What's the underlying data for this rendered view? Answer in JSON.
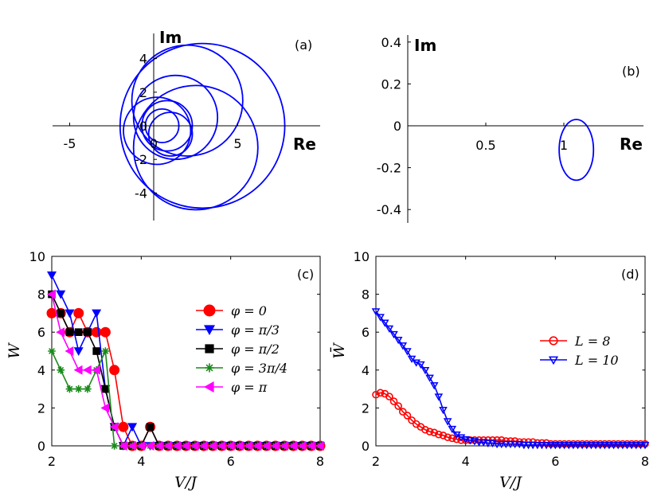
{
  "chart_data": [
    {
      "type": "line",
      "panel_label": "(a)",
      "xlabel": "Re",
      "ylabel": "Im",
      "xlim": [
        -6,
        10
      ],
      "ylim": [
        -6,
        6
      ],
      "xticks": [
        -5,
        0,
        5
      ],
      "yticks": [
        -4,
        -2,
        0,
        2,
        4
      ],
      "xtick_labels": [
        "-5",
        "0",
        "5"
      ],
      "ytick_labels": [
        "-4",
        "-2",
        "0",
        "2",
        "4"
      ],
      "series": [
        {
          "name": "loop1",
          "center": [
            0.5,
            0
          ],
          "radius": 1.0
        },
        {
          "name": "loop2",
          "center": [
            0.8,
            0
          ],
          "radius": 1.5
        },
        {
          "name": "loop3",
          "center": [
            1.0,
            -0.5
          ],
          "radius": 1.3
        },
        {
          "name": "loop4",
          "center": [
            0.2,
            -0.3
          ],
          "radius": 2.0
        },
        {
          "name": "loop5",
          "center": [
            1.3,
            0.5
          ],
          "radius": 2.5
        },
        {
          "name": "loop6",
          "center": [
            2.0,
            1.5
          ],
          "radius": 3.3
        },
        {
          "name": "loop7",
          "center": [
            2.5,
            -1.3
          ],
          "radius": 3.7
        },
        {
          "name": "loop8",
          "center": [
            2.9,
            0
          ],
          "radius": 4.9
        }
      ]
    },
    {
      "type": "line",
      "panel_label": "(b)",
      "xlabel": "Re",
      "ylabel": "Im",
      "xlim": [
        0,
        1.5
      ],
      "ylim": [
        -0.45,
        0.45
      ],
      "xticks": [
        0.5,
        1
      ],
      "yticks": [
        -0.4,
        -0.2,
        0,
        0.2,
        0.4
      ],
      "xtick_labels": [
        "0.5",
        "1"
      ],
      "ytick_labels": [
        "-0.4",
        "-0.2",
        "0",
        "0.2",
        "0.4"
      ],
      "series": [
        {
          "name": "loop",
          "center": [
            1.08,
            -0.115
          ],
          "rx": 0.11,
          "ry": 0.145
        }
      ]
    },
    {
      "type": "line",
      "panel_label": "(c)",
      "xlabel": "V/J",
      "ylabel": "W",
      "xlim": [
        2,
        8
      ],
      "ylim": [
        0,
        10
      ],
      "xticks": [
        2,
        4,
        6,
        8
      ],
      "yticks": [
        0,
        2,
        4,
        6,
        8,
        10
      ],
      "xtick_labels": [
        "2",
        "4",
        "6",
        "8"
      ],
      "ytick_labels": [
        "0",
        "2",
        "4",
        "6",
        "8",
        "10"
      ],
      "legend_position": "right",
      "x": [
        2.0,
        2.2,
        2.4,
        2.6,
        2.8,
        3.0,
        3.2,
        3.4,
        3.6,
        3.8,
        4.0,
        4.2,
        4.4,
        4.6,
        4.8,
        5.0,
        5.2,
        5.4,
        5.6,
        5.8,
        6.0,
        6.2,
        6.4,
        6.6,
        6.8,
        7.0,
        7.2,
        7.4,
        7.6,
        7.8,
        8.0
      ],
      "series": [
        {
          "name": "φ = 0",
          "color": "#ff0000",
          "marker": "circle",
          "values": [
            7,
            7,
            6,
            7,
            6,
            6,
            6,
            4,
            1,
            0,
            0,
            1,
            0,
            0,
            0,
            0,
            0,
            0,
            0,
            0,
            0,
            0,
            0,
            0,
            0,
            0,
            0,
            0,
            0,
            0,
            0
          ]
        },
        {
          "name": "φ = π/3",
          "color": "#0000ff",
          "marker": "triangle-down",
          "values": [
            9,
            8,
            7,
            5,
            6,
            7,
            3,
            1,
            0,
            1,
            0,
            0,
            0,
            0,
            0,
            0,
            0,
            0,
            0,
            0,
            0,
            0,
            0,
            0,
            0,
            0,
            0,
            0,
            0,
            0,
            0
          ]
        },
        {
          "name": "φ = π/2",
          "color": "#000000",
          "marker": "square",
          "values": [
            8,
            7,
            6,
            6,
            6,
            5,
            3,
            1,
            0,
            0,
            0,
            1,
            0,
            0,
            0,
            0,
            0,
            0,
            0,
            0,
            0,
            0,
            0,
            0,
            0,
            0,
            0,
            0,
            0,
            0,
            0
          ]
        },
        {
          "name": "φ = 3π/4",
          "color": "#1a8a1a",
          "marker": "asterisk",
          "values": [
            5,
            4,
            3,
            3,
            3,
            4,
            5,
            0,
            0,
            0,
            0,
            0,
            0,
            0,
            0,
            0,
            0,
            0,
            0,
            0,
            0,
            0,
            0,
            0,
            0,
            0,
            0,
            0,
            0,
            0,
            0
          ]
        },
        {
          "name": "φ = π",
          "color": "#ff00ff",
          "marker": "triangle-left",
          "values": [
            8,
            6,
            5,
            4,
            4,
            4,
            2,
            1,
            0,
            0,
            0,
            0,
            0,
            0,
            0,
            0,
            0,
            0,
            0,
            0,
            0,
            0,
            0,
            0,
            0,
            0,
            0,
            0,
            0,
            0,
            0
          ]
        }
      ]
    },
    {
      "type": "line",
      "panel_label": "(d)",
      "xlabel": "V/J",
      "ylabel": "W̄",
      "xlim": [
        2,
        8
      ],
      "ylim": [
        0,
        10
      ],
      "xticks": [
        2,
        4,
        6,
        8
      ],
      "yticks": [
        0,
        2,
        4,
        6,
        8,
        10
      ],
      "xtick_labels": [
        "2",
        "4",
        "6",
        "8"
      ],
      "ytick_labels": [
        "0",
        "2",
        "4",
        "6",
        "8",
        "10"
      ],
      "legend_position": "right",
      "x": [
        2.0,
        2.1,
        2.2,
        2.3,
        2.4,
        2.5,
        2.6,
        2.7,
        2.8,
        2.9,
        3.0,
        3.1,
        3.2,
        3.3,
        3.4,
        3.5,
        3.6,
        3.7,
        3.8,
        3.9,
        4.0,
        4.1,
        4.2,
        4.3,
        4.4,
        4.5,
        4.6,
        4.7,
        4.8,
        4.9,
        5.0,
        5.1,
        5.2,
        5.3,
        5.4,
        5.5,
        5.6,
        5.7,
        5.8,
        5.9,
        6.0,
        6.1,
        6.2,
        6.3,
        6.4,
        6.5,
        6.6,
        6.7,
        6.8,
        6.9,
        7.0,
        7.1,
        7.2,
        7.3,
        7.4,
        7.5,
        7.6,
        7.7,
        7.8,
        7.9,
        8.0
      ],
      "series": [
        {
          "name": "L = 8",
          "color": "#ff0000",
          "marker": "circle-open",
          "values": [
            2.7,
            2.8,
            2.75,
            2.6,
            2.35,
            2.1,
            1.8,
            1.6,
            1.35,
            1.15,
            1.0,
            0.85,
            0.75,
            0.7,
            0.6,
            0.55,
            0.45,
            0.4,
            0.35,
            0.3,
            0.3,
            0.3,
            0.3,
            0.3,
            0.3,
            0.3,
            0.3,
            0.3,
            0.3,
            0.25,
            0.25,
            0.25,
            0.2,
            0.2,
            0.2,
            0.2,
            0.15,
            0.15,
            0.15,
            0.1,
            0.1,
            0.1,
            0.1,
            0.1,
            0.1,
            0.1,
            0.1,
            0.1,
            0.1,
            0.1,
            0.1,
            0.1,
            0.1,
            0.1,
            0.1,
            0.1,
            0.1,
            0.1,
            0.1,
            0.1,
            0.1
          ]
        },
        {
          "name": "L = 10",
          "color": "#0000ff",
          "marker": "triangle-down-open",
          "values": [
            7.1,
            6.8,
            6.5,
            6.2,
            5.9,
            5.6,
            5.3,
            5.0,
            4.6,
            4.4,
            4.3,
            4.0,
            3.6,
            3.2,
            2.6,
            1.9,
            1.3,
            0.9,
            0.6,
            0.45,
            0.35,
            0.3,
            0.25,
            0.2,
            0.2,
            0.15,
            0.15,
            0.1,
            0.1,
            0.1,
            0.1,
            0.1,
            0.1,
            0.05,
            0.05,
            0.05,
            0.05,
            0.05,
            0.05,
            0.05,
            0.05,
            0.05,
            0.05,
            0.05,
            0.05,
            0.05,
            0.05,
            0.05,
            0.05,
            0.05,
            0.05,
            0.05,
            0.05,
            0.05,
            0.05,
            0.05,
            0.05,
            0.05,
            0.05,
            0.05,
            0.05
          ]
        }
      ]
    }
  ]
}
